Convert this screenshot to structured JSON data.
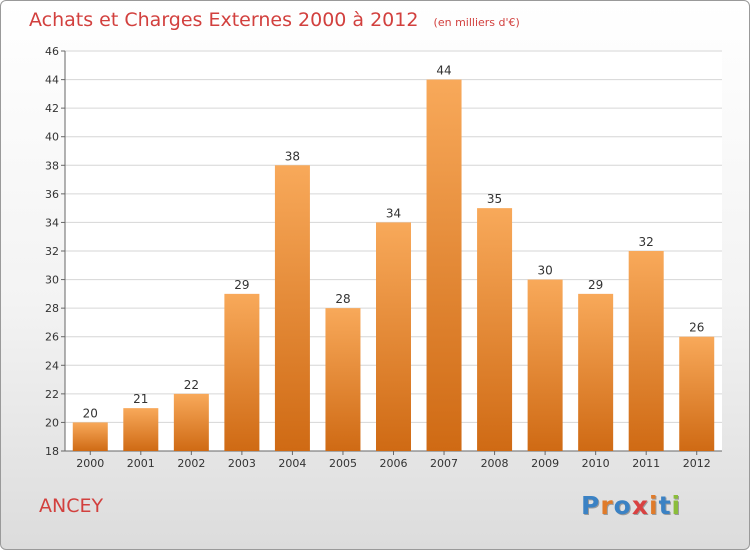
{
  "title": "Achats et Charges Externes 2000 à 2012",
  "subtitle": "(en milliers d'€)",
  "place": "ANCEY",
  "logo": {
    "text": "Proxiti",
    "colors": [
      "#3b82c4",
      "#e07b2a",
      "#3b82c4",
      "#d94141",
      "#e07b2a",
      "#3b82c4",
      "#8bbd3a"
    ]
  },
  "colors": {
    "bar_top": "#f8a95a",
    "bar_bottom": "#cf6a14",
    "title": "#d2403e"
  },
  "chart_data": {
    "type": "bar",
    "categories": [
      "2000",
      "2001",
      "2002",
      "2003",
      "2004",
      "2005",
      "2006",
      "2007",
      "2008",
      "2009",
      "2010",
      "2011",
      "2012"
    ],
    "values": [
      20,
      21,
      22,
      29,
      38,
      28,
      34,
      44,
      35,
      30,
      29,
      32,
      26
    ],
    "ylim": [
      18,
      46
    ],
    "yticks": [
      18,
      20,
      22,
      24,
      26,
      28,
      30,
      32,
      34,
      36,
      38,
      40,
      42,
      44,
      46
    ],
    "grid": true,
    "data_labels": true,
    "xlabel": "",
    "ylabel": ""
  }
}
